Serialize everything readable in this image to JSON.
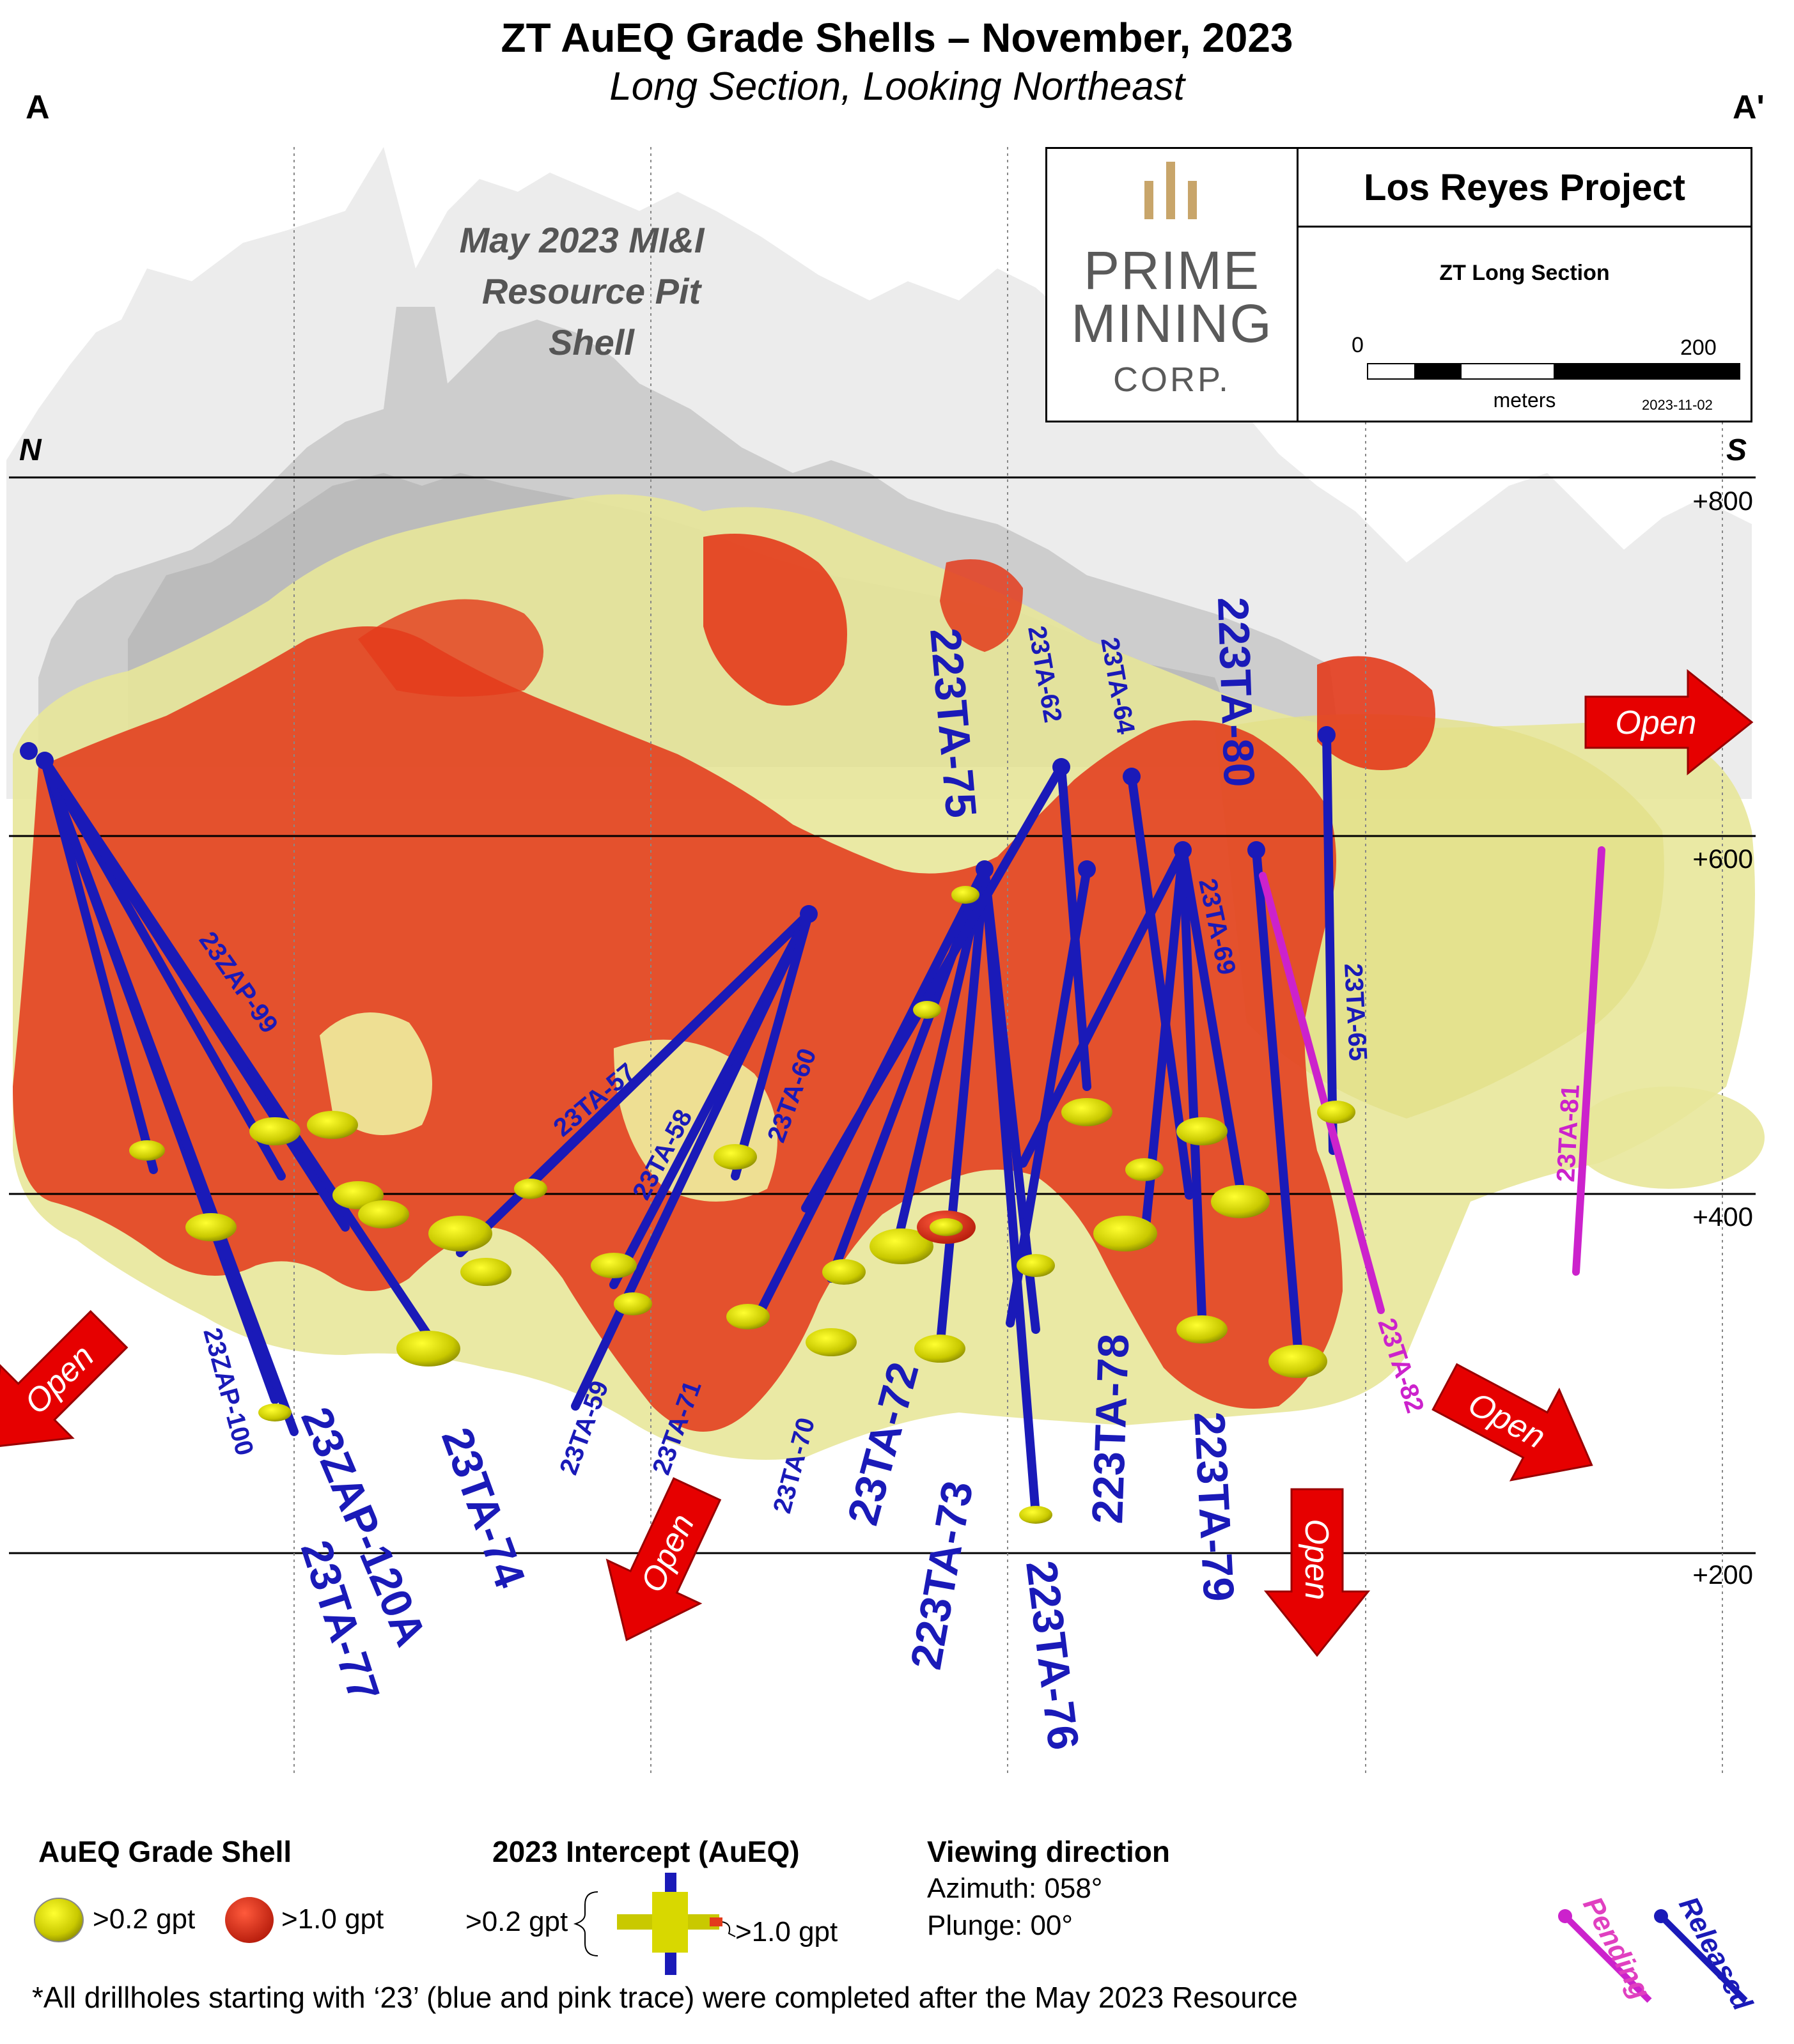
{
  "header": {
    "title": "ZT AuEQ Grade Shells – November, 2023",
    "subtitle": "Long Section, Looking Northeast",
    "left_marker": "A",
    "right_marker": "A'"
  },
  "section": {
    "north_label": "N",
    "south_label": "S",
    "pit_label_line1": "May 2023 MI&I",
    "pit_label_line2": "Resource Pit",
    "pit_label_line3": "Shell",
    "elevations": [
      "+800",
      "+600",
      "+400",
      "+200"
    ],
    "open_label": "Open"
  },
  "info_box": {
    "logo_line1": "PRIME",
    "logo_line2": "MINING",
    "logo_line3": "CORP.",
    "project": "Los Reyes Project",
    "section_name": "ZT Long Section",
    "scale_start": "0",
    "scale_end": "200",
    "scale_unit": "meters",
    "date": "2023-11-02"
  },
  "drillholes": [
    {
      "id": "23ZAP-99",
      "status": "released"
    },
    {
      "id": "23ZAP-100",
      "status": "released"
    },
    {
      "id": "23ZAP-120A",
      "status": "released"
    },
    {
      "id": "23TA-77",
      "status": "released"
    },
    {
      "id": "23TA-74",
      "status": "released"
    },
    {
      "id": "23TA-57",
      "status": "released"
    },
    {
      "id": "23TA-58",
      "status": "released"
    },
    {
      "id": "23TA-59",
      "status": "released"
    },
    {
      "id": "23TA-60",
      "status": "released"
    },
    {
      "id": "23TA-71",
      "status": "released"
    },
    {
      "id": "23TA-70",
      "status": "released"
    },
    {
      "id": "23TA-72",
      "status": "released"
    },
    {
      "id": "223TA-73",
      "status": "released"
    },
    {
      "id": "223TA-75",
      "status": "released"
    },
    {
      "id": "223TA-76",
      "status": "released"
    },
    {
      "id": "23TA-62",
      "status": "released"
    },
    {
      "id": "23TA-64",
      "status": "released"
    },
    {
      "id": "223TA-78",
      "status": "released"
    },
    {
      "id": "23TA-69",
      "status": "released"
    },
    {
      "id": "223TA-79",
      "status": "released"
    },
    {
      "id": "223TA-80",
      "status": "released"
    },
    {
      "id": "23TA-65",
      "status": "released"
    },
    {
      "id": "23TA-82",
      "status": "pending"
    },
    {
      "id": "23TA-81",
      "status": "pending"
    }
  ],
  "legend": {
    "grade_title": "AuEQ Grade Shell",
    "low_grade": ">0.2 gpt",
    "high_grade": ">1.0 gpt",
    "intercept_title": "2023 Intercept (AuEQ)",
    "intercept_low": ">0.2 gpt",
    "intercept_high": ">1.0 gpt",
    "view_title": "Viewing direction",
    "azimuth": "Azimuth: 058°",
    "plunge": "Plunge: 00°",
    "pending": "Pending",
    "released": "Released"
  },
  "footnote": "*All drillholes starting with ‘23’ (blue and pink trace) were completed after the May 2023 Resource",
  "colors": {
    "released_trace": "#1a1ab8",
    "pending_trace": "#cc22cc",
    "low_grade_shell": "#e8e79a",
    "high_grade_shell": "#e33b1c",
    "open_arrow": "#e60000",
    "logo_gold": "#c8a56a",
    "logo_gray": "#5a5a5a"
  }
}
